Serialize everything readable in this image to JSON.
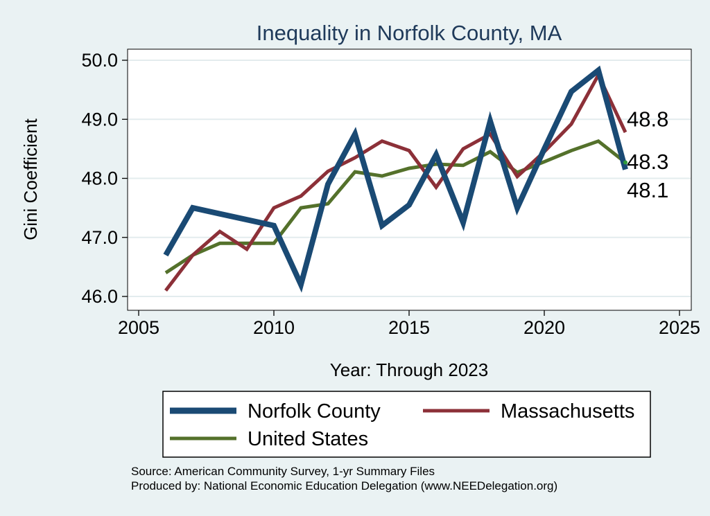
{
  "chart_data": {
    "type": "line",
    "title": "Inequality in Norfolk County, MA",
    "xlabel": "Year: Through 2023",
    "ylabel": "Gini Coefficient",
    "xlim": [
      2005,
      2025
    ],
    "ylim": [
      46.0,
      50.0
    ],
    "xticks": [
      2005,
      2010,
      2015,
      2020,
      2025
    ],
    "yticks": [
      46.0,
      47.0,
      48.0,
      49.0,
      50.0
    ],
    "yticks_labels": [
      "46.0",
      "47.0",
      "48.0",
      "49.0",
      "50.0"
    ],
    "grid": true,
    "legend_position": "bottom",
    "x": [
      2006,
      2007,
      2008,
      2009,
      2010,
      2011,
      2012,
      2013,
      2014,
      2015,
      2016,
      2017,
      2018,
      2019,
      2020,
      2021,
      2022,
      2023
    ],
    "series": [
      {
        "name": "Norfolk County",
        "color": "#1a4a74",
        "values": [
          46.7,
          47.5,
          47.4,
          47.3,
          47.2,
          46.2,
          47.9,
          48.75,
          47.2,
          47.55,
          48.4,
          47.25,
          48.97,
          47.5,
          48.5,
          49.47,
          49.83,
          48.15
        ]
      },
      {
        "name": "Massachusetts",
        "color": "#8c3038",
        "values": [
          46.1,
          46.7,
          47.1,
          46.8,
          47.5,
          47.7,
          48.12,
          48.35,
          48.63,
          48.47,
          47.85,
          48.5,
          48.75,
          48.03,
          48.45,
          48.92,
          49.75,
          48.78
        ]
      },
      {
        "name": "United States",
        "color": "#54712b",
        "values": [
          46.4,
          46.7,
          46.9,
          46.9,
          46.9,
          47.5,
          47.57,
          48.11,
          48.04,
          48.17,
          48.24,
          48.22,
          48.45,
          48.1,
          48.28,
          48.47,
          48.63,
          48.27
        ]
      }
    ],
    "end_labels": [
      {
        "series": "Massachusetts",
        "text": "48.8",
        "value": 48.8
      },
      {
        "series": "United States",
        "text": "48.3",
        "value": 48.3
      },
      {
        "series": "Norfolk County",
        "text": "48.1",
        "value": 48.1
      }
    ],
    "notes": [
      "Source: American Community Survey, 1-yr Summary Files",
      "Produced by: National Economic Education Delegation (www.NEEDelegation.org)"
    ]
  }
}
